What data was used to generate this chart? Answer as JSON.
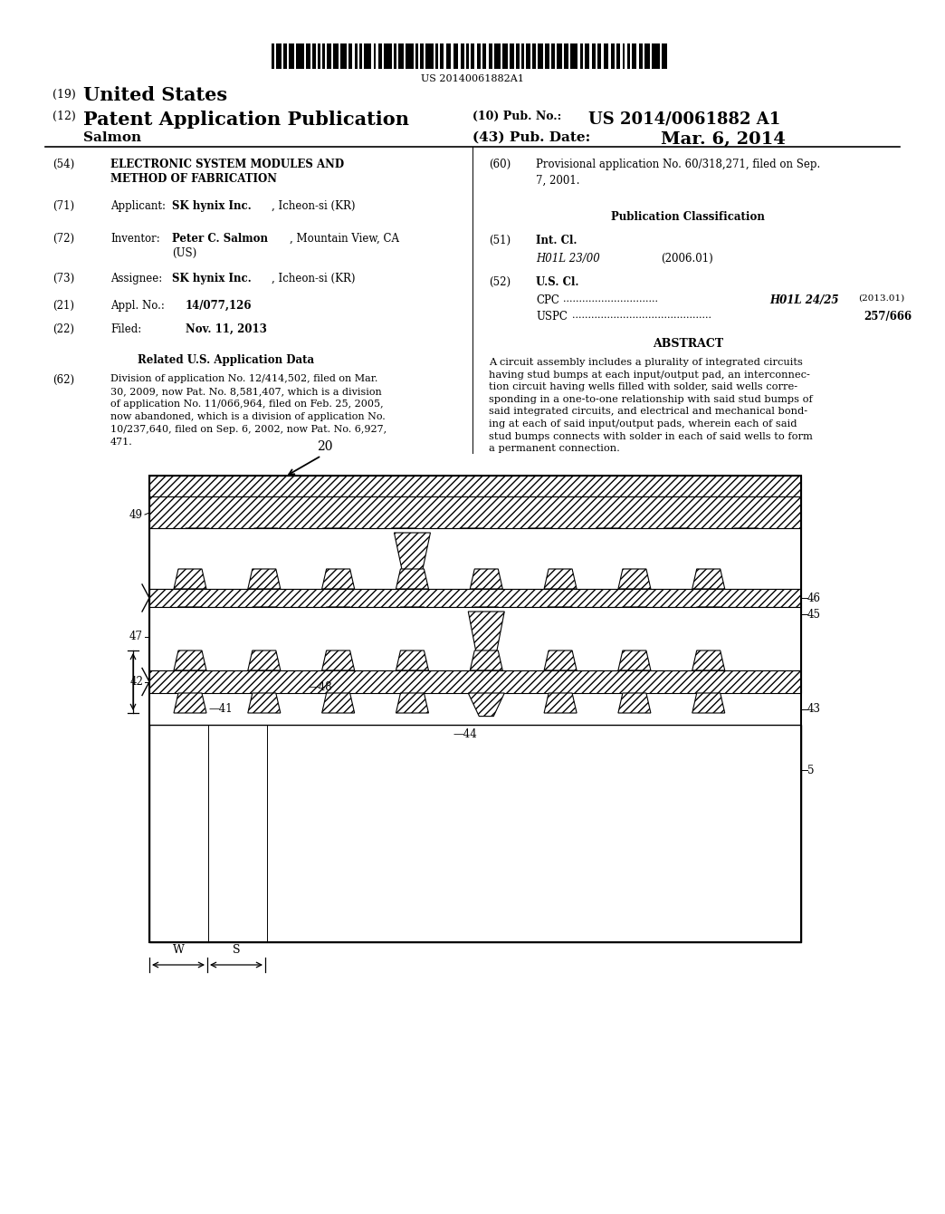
{
  "background_color": "#ffffff",
  "page_width": 10.24,
  "page_height": 13.2
}
